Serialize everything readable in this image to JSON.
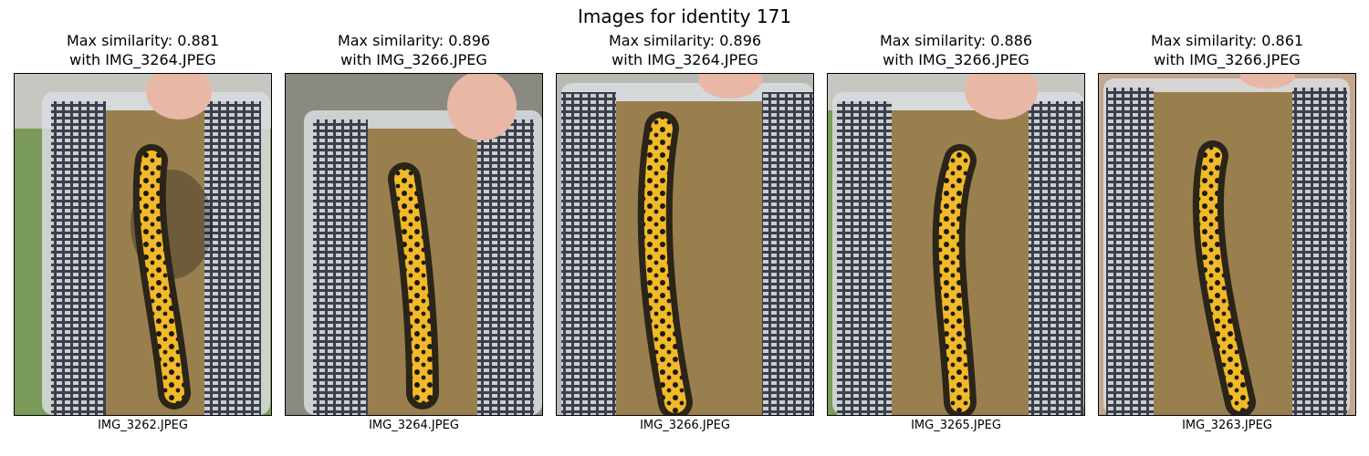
{
  "figure": {
    "title": "Images for identity 171"
  },
  "panels": [
    {
      "title_line1": "Max similarity: 0.881",
      "title_line2": "with IMG_3264.JPEG",
      "filename": "IMG_3262.JPEG"
    },
    {
      "title_line1": "Max similarity: 0.896",
      "title_line2": "with IMG_3266.JPEG",
      "filename": "IMG_3264.JPEG"
    },
    {
      "title_line1": "Max similarity: 0.896",
      "title_line2": "with IMG_3264.JPEG",
      "filename": "IMG_3266.JPEG"
    },
    {
      "title_line1": "Max similarity: 0.886",
      "title_line2": "with IMG_3266.JPEG",
      "filename": "IMG_3265.JPEG"
    },
    {
      "title_line1": "Max similarity: 0.861",
      "title_line2": "with IMG_3266.JPEG",
      "filename": "IMG_3263.JPEG"
    }
  ]
}
